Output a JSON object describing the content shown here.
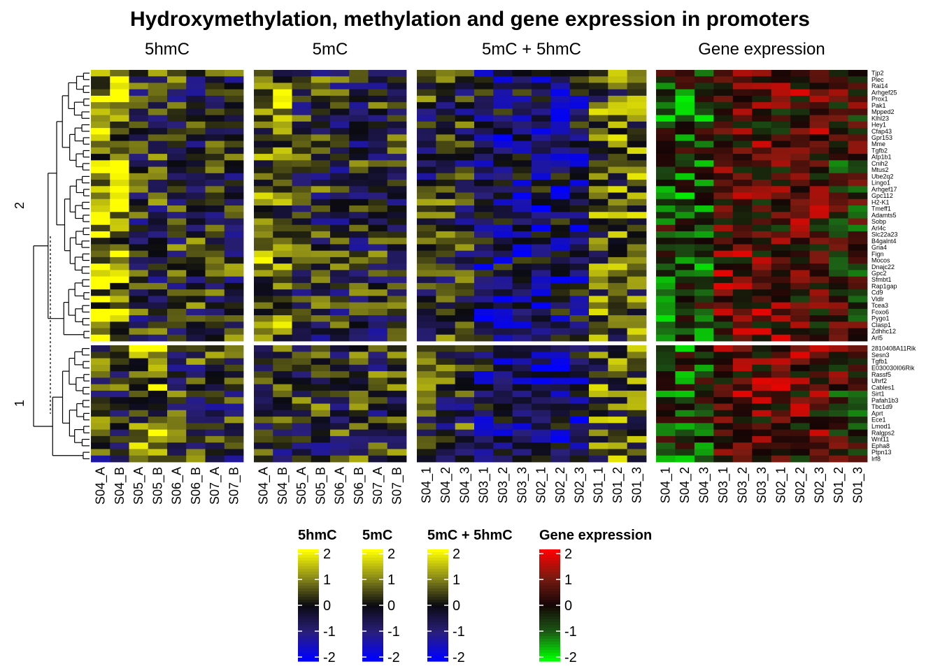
{
  "chart_data": {
    "type": "heatmap",
    "title": "Hydroxymethylation, methylation and gene expression in promoters",
    "cluster_labels": [
      "2",
      "1"
    ],
    "panels": [
      {
        "title": "5hmC",
        "columns": [
          "S04_A",
          "S04_B",
          "S05_A",
          "S05_B",
          "S06_A",
          "S06_B",
          "S07_A",
          "S07_B"
        ],
        "palette": "blue-black-yellow"
      },
      {
        "title": "5mC",
        "columns": [
          "S04_A",
          "S04_B",
          "S05_A",
          "S05_B",
          "S06_A",
          "S06_B",
          "S07_A",
          "S07_B"
        ],
        "palette": "blue-black-yellow"
      },
      {
        "title": "5mC + 5hmC",
        "columns": [
          "S04_1",
          "S04_2",
          "S04_3",
          "S03_1",
          "S03_2",
          "S03_3",
          "S02_1",
          "S02_2",
          "S02_3",
          "S01_1",
          "S01_2",
          "S01_3"
        ],
        "palette": "blue-black-yellow"
      },
      {
        "title": "Gene expression",
        "columns": [
          "S04_1",
          "S04_2",
          "S04_3",
          "S03_1",
          "S03_2",
          "S03_3",
          "S02_1",
          "S02_2",
          "S02_3",
          "S01_2",
          "S01_3"
        ],
        "palette": "green-black-red"
      }
    ],
    "row_groups": [
      {
        "cluster": "2",
        "genes": [
          "Tjp2",
          "Plec",
          "Rai14",
          "Arhgef25",
          "Prox1",
          "Pak1",
          "Mpped2",
          "Klhl23",
          "Hey1",
          "Cfap43",
          "Gpr153",
          "Mme",
          "Tgfb2",
          "Atp1b1",
          "Cnih2",
          "Mtus2",
          "Ube2q2",
          "Lingo1",
          "Arhgef17",
          "Gpc112",
          "H2-K1",
          "Tmeff1",
          "Adamts5",
          "Sobp",
          "Arl4c",
          "Slc22a23",
          "B4galnt4",
          "Gria4",
          "Fign",
          "Mocos",
          "Dnajc22",
          "Gpc2",
          "Sfmbt1",
          "Rap1gap",
          "Cd9",
          "Vldlr",
          "Tcea3",
          "Foxo6",
          "Pygo1",
          "Clasp1",
          "Zdhhc12",
          "Arl5"
        ]
      },
      {
        "cluster": "1",
        "genes": [
          "2810408A11Rik",
          "Sesn3",
          "Tgfb1",
          "E030030I06Rik",
          "Rassf5",
          "Uhrf2",
          "Cables1",
          "Sirt1",
          "Pafah1b3",
          "Tbc1d9",
          "Aprt",
          "Ece1",
          "Lmod1",
          "Ralgps2",
          "Wnt11",
          "Epha8",
          "Ptpn13",
          "Irf8"
        ]
      }
    ],
    "value_range": [
      -2,
      2
    ],
    "legends": [
      {
        "title": "5hmC",
        "ticks": [
          "2",
          "1",
          "0",
          "-1",
          "-2"
        ],
        "colors": [
          "#0000ff",
          "#1f1a5a",
          "#000000",
          "#8a8a10",
          "#ffff00"
        ]
      },
      {
        "title": "5mC",
        "ticks": [
          "2",
          "1",
          "0",
          "-1",
          "-2"
        ],
        "colors": [
          "#0000ff",
          "#1f1a5a",
          "#000000",
          "#8a8a10",
          "#ffff00"
        ]
      },
      {
        "title": "5mC + 5hmC",
        "ticks": [
          "2",
          "1",
          "0",
          "-1",
          "-2"
        ],
        "colors": [
          "#0000ff",
          "#1f1a5a",
          "#000000",
          "#8a8a10",
          "#ffff00"
        ]
      },
      {
        "title": "Gene expression",
        "ticks": [
          "2",
          "1",
          "0",
          "-1",
          "-2"
        ],
        "colors": [
          "#00ff00",
          "#1a4a14",
          "#000000",
          "#6b1a10",
          "#ff0000"
        ]
      }
    ],
    "legend_position": "bottom"
  }
}
